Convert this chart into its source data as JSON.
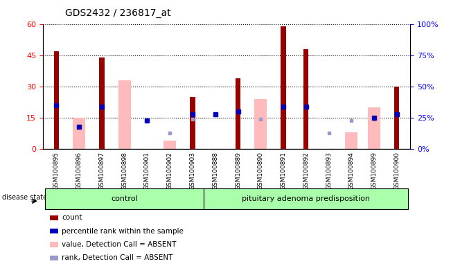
{
  "title": "GDS2432 / 236817_at",
  "samples": [
    "GSM100895",
    "GSM100896",
    "GSM100897",
    "GSM100898",
    "GSM100901",
    "GSM100902",
    "GSM100903",
    "GSM100888",
    "GSM100889",
    "GSM100890",
    "GSM100891",
    "GSM100892",
    "GSM100893",
    "GSM100894",
    "GSM100899",
    "GSM100900"
  ],
  "count": [
    47,
    0,
    44,
    0,
    0,
    0,
    25,
    0,
    34,
    0,
    59,
    48,
    0,
    0,
    0,
    30
  ],
  "percentile": [
    35,
    18,
    34,
    0,
    23,
    0,
    28,
    28,
    30,
    0,
    34,
    34,
    0,
    0,
    25,
    28
  ],
  "value_absent": [
    0,
    15,
    0,
    33,
    0,
    4,
    0,
    0,
    0,
    24,
    0,
    0,
    0,
    8,
    20,
    0
  ],
  "rank_absent": [
    0,
    18,
    0,
    0,
    23,
    13,
    24,
    0,
    0,
    24,
    0,
    0,
    13,
    23,
    24,
    0
  ],
  "n_control": 7,
  "n_pituitary": 9,
  "ylim_left": [
    0,
    60
  ],
  "ylim_right": [
    0,
    100
  ],
  "yticks_left": [
    0,
    15,
    30,
    45,
    60
  ],
  "ytick_labels_left": [
    "0",
    "15",
    "30",
    "45",
    "60"
  ],
  "yticks_right": [
    0,
    25,
    50,
    75,
    100
  ],
  "ytick_labels_right": [
    "0%",
    "25%",
    "50%",
    "75%",
    "100%"
  ],
  "bar_color_count": "#990000",
  "bar_color_value_absent": "#ffbbbb",
  "dot_color_percentile": "#0000bb",
  "dot_color_rank_absent": "#9999cc",
  "disease_state_label": "disease state",
  "control_label": "control",
  "pituitary_label": "pituitary adenoma predisposition",
  "legend_items": [
    "count",
    "percentile rank within the sample",
    "value, Detection Call = ABSENT",
    "rank, Detection Call = ABSENT"
  ],
  "group_bg_color": "#aaffaa",
  "xticklabel_bg": "#cccccc"
}
